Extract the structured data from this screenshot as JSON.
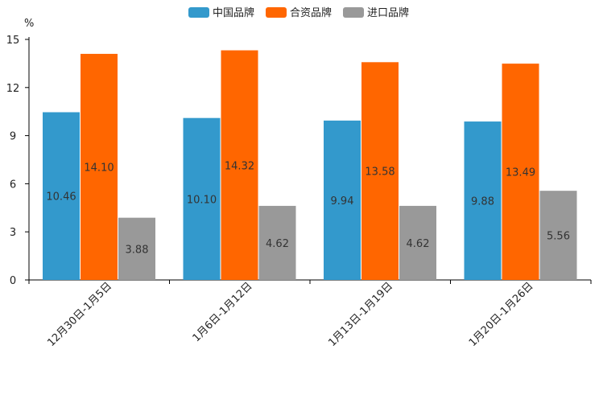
{
  "chart_data": {
    "type": "bar",
    "title": "",
    "ylabel": "%",
    "xlabel": "",
    "ylim": [
      0,
      15
    ],
    "yticks": [
      0,
      3,
      6,
      9,
      12,
      15
    ],
    "categories": [
      "12月30日-1月5日",
      "1月6日-1月12日",
      "1月13日-1月19日",
      "1月20日-1月26日"
    ],
    "series": [
      {
        "name": "中国品牌",
        "color": "#3399CC",
        "values": [
          10.46,
          10.1,
          9.94,
          9.88
        ],
        "labels": [
          "10.46",
          "10.10",
          "9.94",
          "9.88"
        ]
      },
      {
        "name": "合资品牌",
        "color": "#FF6600",
        "values": [
          14.1,
          14.32,
          13.58,
          13.49
        ],
        "labels": [
          "14.10",
          "14.32",
          "13.58",
          "13.49"
        ]
      },
      {
        "name": "进口品牌",
        "color": "#999999",
        "values": [
          3.88,
          4.62,
          4.62,
          5.56
        ],
        "labels": [
          "3.88",
          "4.62",
          "4.62",
          "5.56"
        ]
      }
    ],
    "legend_position": "top-center"
  }
}
